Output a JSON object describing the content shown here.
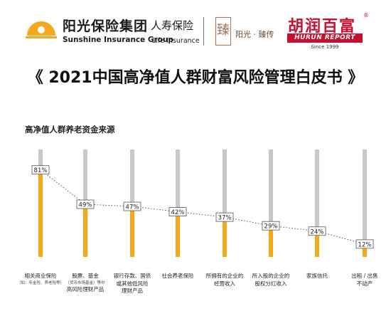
{
  "header": {
    "brand_cn": "阳光保险集团",
    "brand_en": "Sunshine Insurance Group",
    "life_cn": "人寿保险",
    "life_en": "Life Insurance",
    "seal_char": "臻",
    "heritage": "阳光 · 臻传",
    "hurun_cn": "胡润百富",
    "hurun_reg": "®",
    "hurun_en": "HURUN REPORT",
    "hurun_since": "Since 1999"
  },
  "report_title": "《 2021中国高净值人群财富风险管理白皮书 》",
  "chart_data": {
    "type": "bar",
    "title": "高净值人群养老资金来源",
    "categories": [
      {
        "line1": "相关商业保险",
        "line2": "",
        "note": "（如：年金险、养老险等）"
      },
      {
        "line1": "股票、基金",
        "line2": "高风险理财产品",
        "note": "（货币市场基金）等中"
      },
      {
        "line1": "银行存款、国债",
        "line2": "或其他低风险",
        "line3": "理财产品",
        "note": ""
      },
      {
        "line1": "社会养老保险",
        "line2": "",
        "note": ""
      },
      {
        "line1": "所拥有的企业的",
        "line2": "经营收入",
        "note": ""
      },
      {
        "line1": "所入股的企业的",
        "line2": "股权分红收入",
        "note": ""
      },
      {
        "line1": "家族信托",
        "line2": "",
        "note": ""
      },
      {
        "line1": "出租 / 出售",
        "line2": "不动产",
        "note": ""
      }
    ],
    "values": [
      81,
      49,
      47,
      42,
      37,
      29,
      24,
      12
    ],
    "value_suffix": "%",
    "ylim": [
      0,
      100
    ],
    "grid": false,
    "colors": {
      "bar": "#f5a81c",
      "track": "#c8c8c8",
      "connector": "#555555",
      "label_border": "#555555"
    }
  }
}
